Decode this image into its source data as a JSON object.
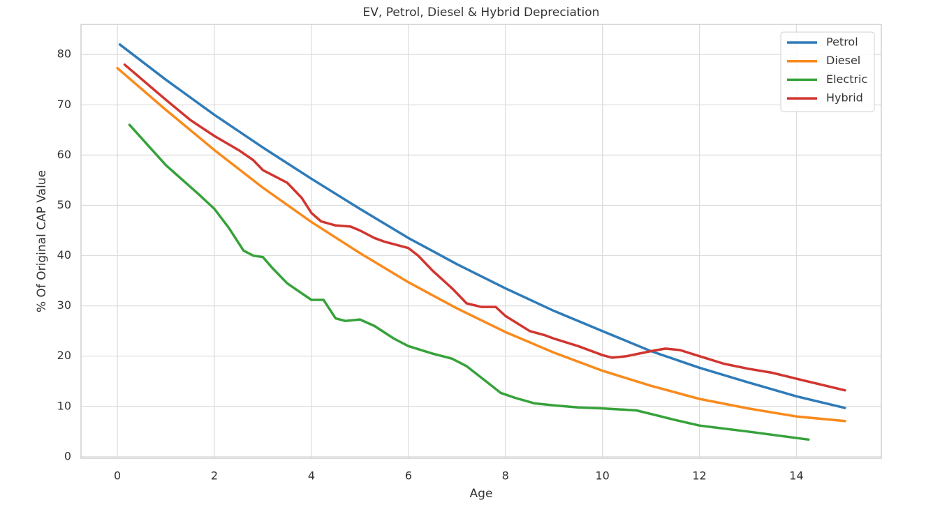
{
  "chart_data": {
    "type": "line",
    "title": "EV, Petrol, Diesel & Hybrid Depreciation",
    "x_label": "Age",
    "y_label": "% Of Original CAP Value",
    "xlim": [
      -0.75,
      15.75
    ],
    "xticks": [
      0,
      2,
      4,
      6,
      8,
      10,
      12,
      14
    ],
    "ylim": [
      -0.3,
      86
    ],
    "yticks": [
      0,
      10,
      20,
      30,
      40,
      50,
      60,
      70,
      80
    ],
    "grid": true,
    "legend": "upper-right",
    "series": [
      {
        "name": "Petrol",
        "color": "#2f7bb8",
        "x": [
          0.05,
          1,
          2,
          3,
          4,
          5,
          6,
          7,
          8,
          9,
          10,
          11,
          12,
          13,
          14,
          15
        ],
        "values": [
          82,
          75,
          68,
          61.5,
          55.3,
          49.3,
          43.5,
          38.3,
          33.5,
          29,
          25,
          21,
          17.7,
          14.8,
          12,
          9.7
        ]
      },
      {
        "name": "Diesel",
        "color": "#f98a1c",
        "x": [
          0,
          1,
          2,
          3,
          4,
          5,
          6,
          7,
          8,
          9,
          10,
          11,
          12,
          13,
          14,
          15
        ],
        "values": [
          77.3,
          69,
          61,
          53.5,
          46.7,
          40.5,
          34.7,
          29.5,
          24.8,
          20.7,
          17.1,
          14.1,
          11.5,
          9.6,
          8,
          7.1
        ]
      },
      {
        "name": "Electric",
        "color": "#36a23a",
        "x": [
          0.25,
          1,
          1.7,
          2,
          2.3,
          2.6,
          2.8,
          3,
          3.2,
          3.5,
          3.8,
          4,
          4.25,
          4.5,
          4.7,
          5,
          5.3,
          5.7,
          6,
          6.5,
          6.9,
          7.2,
          7.6,
          7.9,
          8.2,
          8.6,
          9,
          9.5,
          10,
          10.7,
          11,
          11.5,
          12,
          13,
          14.25
        ],
        "values": [
          66,
          58,
          52,
          49.3,
          45.5,
          41,
          40,
          39.7,
          37.5,
          34.5,
          32.5,
          31.2,
          31.2,
          27.5,
          27,
          27.3,
          26,
          23.5,
          22,
          20.5,
          19.5,
          18,
          15,
          12.7,
          11.7,
          10.6,
          10.2,
          9.8,
          9.6,
          9.2,
          8.5,
          7.3,
          6.2,
          5,
          3.4
        ]
      },
      {
        "name": "Hybrid",
        "color": "#d1352f",
        "x": [
          0.15,
          1,
          1.5,
          2,
          2.5,
          2.8,
          3,
          3.5,
          3.8,
          4,
          4.2,
          4.5,
          4.8,
          5,
          5.3,
          5.5,
          6,
          6.2,
          6.5,
          6.9,
          7.2,
          7.5,
          7.8,
          8,
          8.5,
          8.8,
          9,
          9.5,
          10,
          10.2,
          10.5,
          11,
          11.3,
          11.6,
          12,
          12.5,
          13,
          13.5,
          14,
          15
        ],
        "values": [
          78,
          71,
          67,
          63.8,
          61,
          59,
          57,
          54.5,
          51.5,
          48.5,
          46.8,
          46,
          45.8,
          45,
          43.5,
          42.8,
          41.5,
          40,
          37,
          33.5,
          30.5,
          29.8,
          29.8,
          28,
          25,
          24.2,
          23.5,
          22,
          20.2,
          19.7,
          20,
          21,
          21.5,
          21.2,
          20,
          18.5,
          17.5,
          16.7,
          15.5,
          13.2
        ]
      }
    ]
  }
}
